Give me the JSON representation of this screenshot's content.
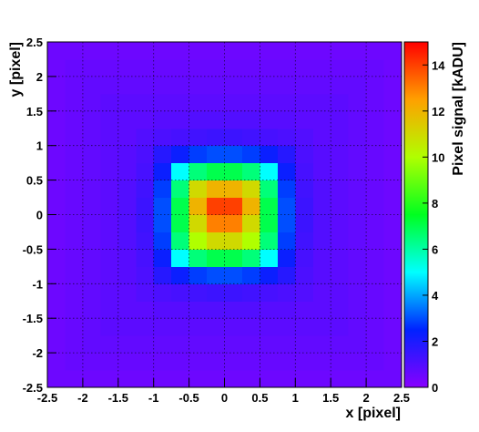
{
  "chart_data": {
    "type": "heatmap",
    "x_label": "x [pixel]",
    "y_label": "y [pixel]",
    "colorbar_label": "Pixel signal [kADU]",
    "xbins": [
      -2.5,
      -2.25,
      -2,
      -1.75,
      -1.5,
      -1.25,
      -1,
      -0.75,
      -0.5,
      -0.25,
      0,
      0.25,
      0.5,
      0.75,
      1,
      1.25,
      1.5,
      1.75,
      2,
      2.25,
      2.5
    ],
    "ybins": [
      -2.5,
      -2.25,
      -2,
      -1.75,
      -1.5,
      -1.25,
      -1,
      -0.75,
      -0.5,
      -0.25,
      0,
      0.25,
      0.5,
      0.75,
      1,
      1.25,
      1.5,
      1.75,
      2,
      2.25,
      2.5
    ],
    "values": [
      [
        0.5,
        0.5,
        0.5,
        0.5,
        0.5,
        0.5,
        0.5,
        0.5,
        0.5,
        0.5,
        0.5,
        0.5,
        0.5,
        0.5,
        0.5,
        0.5,
        0.5,
        0.5,
        0.5,
        0.5
      ],
      [
        0.5,
        0.6,
        0.6,
        0.6,
        0.6,
        0.6,
        0.6,
        0.6,
        0.6,
        0.6,
        0.6,
        0.6,
        0.6,
        0.6,
        0.6,
        0.6,
        0.6,
        0.6,
        0.6,
        0.5
      ],
      [
        0.5,
        0.6,
        0.7,
        0.7,
        0.7,
        0.7,
        0.7,
        0.7,
        0.7,
        0.7,
        0.7,
        0.7,
        0.7,
        0.7,
        0.7,
        0.7,
        0.7,
        0.7,
        0.6,
        0.5
      ],
      [
        0.5,
        0.6,
        0.7,
        0.8,
        0.8,
        0.8,
        0.8,
        0.8,
        0.8,
        0.8,
        0.8,
        0.8,
        0.8,
        0.8,
        0.8,
        0.8,
        0.8,
        0.7,
        0.6,
        0.5
      ],
      [
        0.5,
        0.6,
        0.7,
        0.8,
        0.8,
        0.8,
        0.9,
        0.9,
        1,
        1,
        1,
        1,
        0.9,
        0.9,
        0.8,
        0.8,
        0.8,
        0.7,
        0.6,
        0.5
      ],
      [
        0.5,
        0.6,
        0.7,
        0.8,
        0.8,
        1,
        1.1,
        1.2,
        1.3,
        1.4,
        1.4,
        1.3,
        1.2,
        1.1,
        1,
        0.8,
        0.8,
        0.7,
        0.6,
        0.5
      ],
      [
        0.5,
        0.6,
        0.7,
        0.8,
        0.9,
        1.1,
        1.8,
        2.3,
        2.8,
        3,
        3,
        2.8,
        2.3,
        1.8,
        1.1,
        0.9,
        0.8,
        0.7,
        0.6,
        0.5
      ],
      [
        0.5,
        0.6,
        0.7,
        0.8,
        0.9,
        1.2,
        2.3,
        5,
        6.5,
        7,
        7,
        6.5,
        5,
        2.3,
        1.2,
        0.9,
        0.8,
        0.7,
        0.6,
        0.5
      ],
      [
        0.5,
        0.6,
        0.7,
        0.8,
        1,
        1.3,
        2.8,
        6.5,
        10,
        11,
        11,
        10,
        6.5,
        2.8,
        1.3,
        1,
        0.8,
        0.7,
        0.6,
        0.5
      ],
      [
        0.5,
        0.6,
        0.7,
        0.8,
        1,
        1.4,
        3,
        7,
        11,
        13,
        13,
        11,
        7,
        3,
        1.4,
        1,
        0.8,
        0.7,
        0.6,
        0.5
      ],
      [
        0.5,
        0.6,
        0.7,
        0.8,
        1,
        1.4,
        3,
        7,
        12,
        14,
        14,
        12,
        7,
        3,
        1.4,
        1,
        0.8,
        0.7,
        0.6,
        0.5
      ],
      [
        0.5,
        0.6,
        0.7,
        0.8,
        1,
        1.3,
        2.8,
        6.5,
        11,
        12,
        12,
        11,
        6.5,
        2.8,
        1.3,
        1,
        0.8,
        0.7,
        0.6,
        0.5
      ],
      [
        0.5,
        0.6,
        0.7,
        0.8,
        0.9,
        1.2,
        2.3,
        5,
        6.5,
        7,
        7,
        6.5,
        5,
        2.3,
        1.2,
        0.9,
        0.8,
        0.7,
        0.6,
        0.5
      ],
      [
        0.5,
        0.6,
        0.7,
        0.8,
        0.9,
        1.1,
        1.8,
        2.3,
        2.8,
        3,
        3,
        2.8,
        2.3,
        1.8,
        1.1,
        0.9,
        0.8,
        0.7,
        0.6,
        0.5
      ],
      [
        0.5,
        0.6,
        0.7,
        0.8,
        0.8,
        1,
        1.1,
        1.2,
        1.3,
        1.4,
        1.4,
        1.3,
        1.2,
        1.1,
        1,
        0.8,
        0.8,
        0.7,
        0.6,
        0.5
      ],
      [
        0.5,
        0.6,
        0.7,
        0.8,
        0.8,
        0.8,
        0.9,
        0.9,
        1,
        1,
        1,
        1,
        0.9,
        0.9,
        0.8,
        0.8,
        0.8,
        0.7,
        0.6,
        0.5
      ],
      [
        0.5,
        0.6,
        0.7,
        0.8,
        0.8,
        0.8,
        0.8,
        0.8,
        0.8,
        0.8,
        0.8,
        0.8,
        0.8,
        0.8,
        0.8,
        0.8,
        0.8,
        0.7,
        0.6,
        0.5
      ],
      [
        0.5,
        0.6,
        0.7,
        0.7,
        0.7,
        0.7,
        0.7,
        0.7,
        0.7,
        0.7,
        0.7,
        0.7,
        0.7,
        0.7,
        0.7,
        0.7,
        0.7,
        0.7,
        0.6,
        0.5
      ],
      [
        0.5,
        0.6,
        0.6,
        0.6,
        0.6,
        0.6,
        0.6,
        0.6,
        0.6,
        0.6,
        0.6,
        0.6,
        0.6,
        0.6,
        0.6,
        0.6,
        0.6,
        0.6,
        0.6,
        0.5
      ],
      [
        0.5,
        0.5,
        0.5,
        0.5,
        0.5,
        0.5,
        0.5,
        0.5,
        0.5,
        0.5,
        0.5,
        0.5,
        0.5,
        0.5,
        0.5,
        0.5,
        0.5,
        0.5,
        0.5,
        0.5
      ]
    ],
    "xlim": [
      -2.5,
      2.5
    ],
    "ylim": [
      -2.5,
      2.5
    ],
    "zlim": [
      0,
      15
    ],
    "xticks": [
      -2.5,
      -2,
      -1.5,
      -1,
      -0.5,
      0,
      0.5,
      1,
      1.5,
      2,
      2.5
    ],
    "yticks": [
      -2.5,
      -2,
      -1.5,
      -1,
      -0.5,
      0,
      0.5,
      1,
      1.5,
      2,
      2.5
    ],
    "zticks": [
      0,
      2,
      4,
      6,
      8,
      10,
      12,
      14
    ],
    "colormap": [
      "#8800ff",
      "#0022ff",
      "#00ffff",
      "#00ff20",
      "#b0ff00",
      "#ffa000",
      "#ff0000"
    ],
    "grid": true
  }
}
